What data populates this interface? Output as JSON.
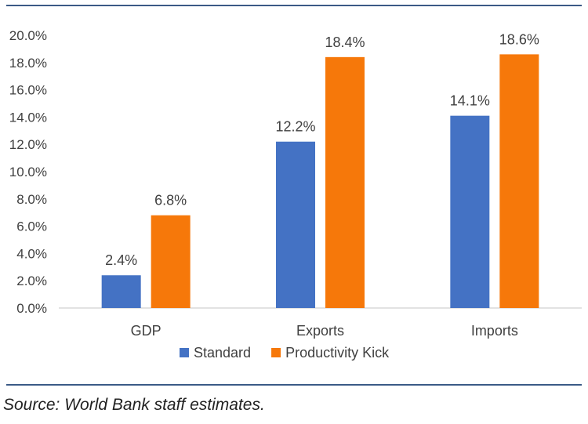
{
  "source_note": "Source: World Bank staff estimates.",
  "chart_data": {
    "type": "bar",
    "categories": [
      "GDP",
      "Exports",
      "Imports"
    ],
    "series": [
      {
        "name": "Standard",
        "values": [
          2.4,
          12.2,
          14.1
        ],
        "color": "#4472C4"
      },
      {
        "name": "Productivity Kick",
        "values": [
          6.8,
          18.4,
          18.6
        ],
        "color": "#F6780A"
      }
    ],
    "data_labels": [
      [
        "2.4%",
        "12.2%",
        "14.1%"
      ],
      [
        "6.8%",
        "18.4%",
        "18.6%"
      ]
    ],
    "ylim": [
      0,
      20
    ],
    "y_ticks": [
      0,
      2,
      4,
      6,
      8,
      10,
      12,
      14,
      16,
      18,
      20
    ],
    "y_tick_labels": [
      "0.0%",
      "2.0%",
      "4.0%",
      "6.0%",
      "8.0%",
      "10.0%",
      "12.0%",
      "14.0%",
      "16.0%",
      "18.0%",
      "20.0%"
    ],
    "grid": false,
    "legend_position": "bottom",
    "xlabel": "",
    "ylabel": "",
    "title": ""
  }
}
